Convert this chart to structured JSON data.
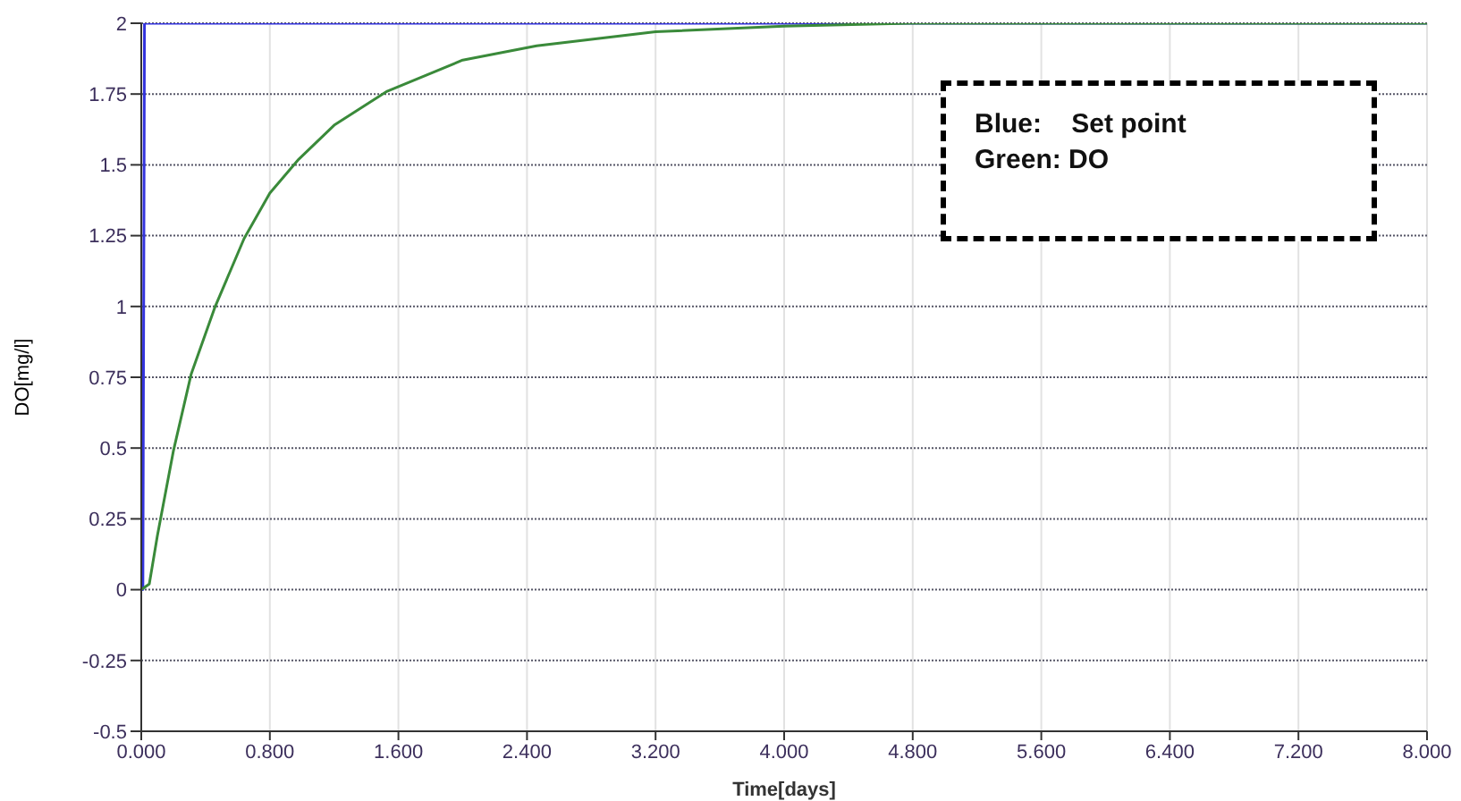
{
  "chart_data": {
    "type": "line",
    "xlabel": "Time[days]",
    "ylabel": "DO[mg/l]",
    "xlim": [
      0,
      8
    ],
    "xticks": [
      {
        "value": 0,
        "label": "0.000"
      },
      {
        "value": 0.8,
        "label": "0.800"
      },
      {
        "value": 1.6,
        "label": "1.600"
      },
      {
        "value": 2.4,
        "label": "2.400"
      },
      {
        "value": 3.2,
        "label": "3.200"
      },
      {
        "value": 4,
        "label": "4.000"
      },
      {
        "value": 4.8,
        "label": "4.800"
      },
      {
        "value": 5.6,
        "label": "5.600"
      },
      {
        "value": 6.4,
        "label": "6.400"
      },
      {
        "value": 7.2,
        "label": "7.200"
      },
      {
        "value": 8,
        "label": "8.000"
      }
    ],
    "ylim": [
      -0.5,
      2
    ],
    "yticks": [
      -0.5,
      -0.25,
      0,
      0.25,
      0.5,
      0.75,
      1,
      1.25,
      1.5,
      1.75,
      2
    ],
    "grid": true,
    "marker": "none",
    "line_style": "solid",
    "series": [
      {
        "color": "#3333dd",
        "x": [
          0,
          0.01,
          0.02,
          8
        ],
        "values": [
          0,
          0,
          2,
          2
        ]
      },
      {
        "color": "#3a8a3a",
        "x": [
          0,
          0.05,
          0.1,
          0.2,
          0.31,
          0.46,
          0.64,
          0.8,
          0.98,
          1.2,
          1.53,
          2,
          2.46,
          3.2,
          4,
          4.8,
          8
        ],
        "values": [
          0,
          0.02,
          0.19,
          0.49,
          0.76,
          1,
          1.24,
          1.4,
          1.52,
          1.64,
          1.76,
          1.87,
          1.92,
          1.97,
          1.99,
          2,
          2
        ]
      }
    ],
    "annotations": [
      "Blue:    Set point",
      "Green: DO"
    ]
  }
}
